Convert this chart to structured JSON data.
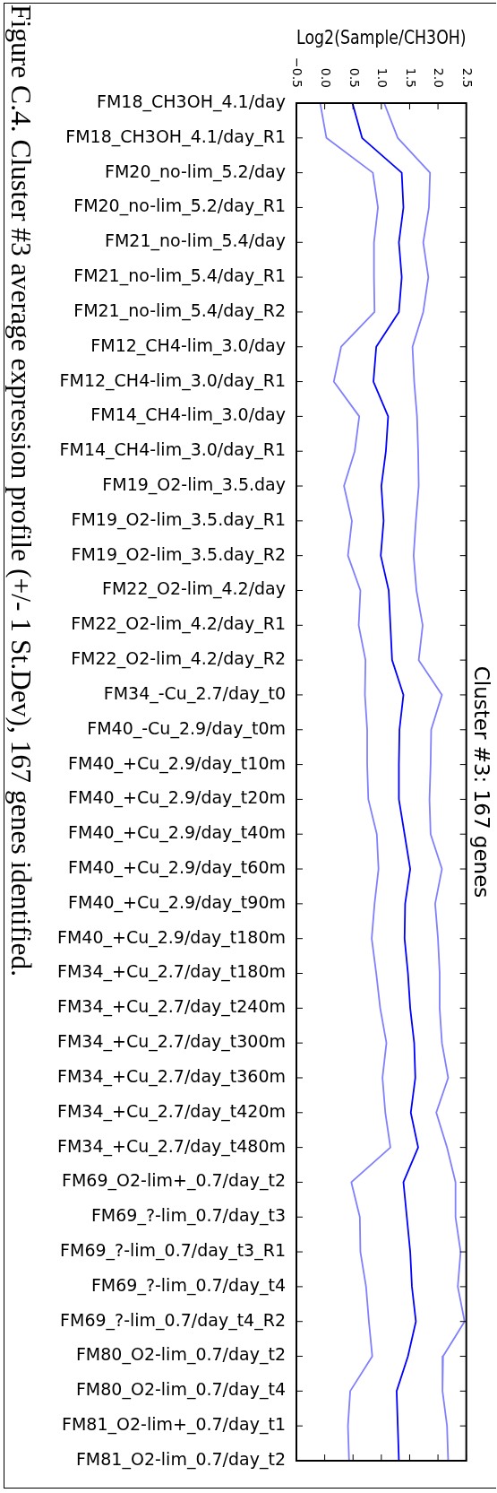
{
  "chart_data": {
    "type": "line",
    "orientation": "horizontal",
    "title": "Cluster #3: 167 genes",
    "xlabel": "Log2(Sample/CH3OH)",
    "annotations": [
      "Figure C.4. Cluster #3 average expression profile (+/- 1 St.Dev), 167 genes identified."
    ],
    "categories": [
      "FM18_CH3OH_4.1/day",
      "FM18_CH3OH_4.1/day_R1",
      "FM20_no-lim_5.2/day",
      "FM20_no-lim_5.2/day_R1",
      "FM21_no-lim_5.4/day",
      "FM21_no-lim_5.4/day_R1",
      "FM21_no-lim_5.4/day_R2",
      "FM12_CH4-lim_3.0/day",
      "FM12_CH4-lim_3.0/day_R1",
      "FM14_CH4-lim_3.0/day",
      "FM14_CH4-lim_3.0/day_R1",
      "FM19_O2-lim_3.5.day",
      "FM19_O2-lim_3.5.day_R1",
      "FM19_O2-lim_3.5.day_R2",
      "FM22_O2-lim_4.2/day",
      "FM22_O2-lim_4.2/day_R1",
      "FM22_O2-lim_4.2/day_R2",
      "FM34_-Cu_2.7/day_t0",
      "FM40_-Cu_2.9/day_t0m",
      "FM40_+Cu_2.9/day_t10m",
      "FM40_+Cu_2.9/day_t20m",
      "FM40_+Cu_2.9/day_t40m",
      "FM40_+Cu_2.9/day_t60m",
      "FM40_+Cu_2.9/day_t90m",
      "FM40_+Cu_2.9/day_t180m",
      "FM34_+Cu_2.7/day_t180m",
      "FM34_+Cu_2.7/day_t240m",
      "FM34_+Cu_2.7/day_t300m",
      "FM34_+Cu_2.7/day_t360m",
      "FM34_+Cu_2.7/day_t420m",
      "FM34_+Cu_2.7/day_t480m",
      "FM69_O2-lim+_0.7/day_t2",
      "FM69_?-lim_0.7/day_t3",
      "FM69_?-lim_0.7/day_t3_R1",
      "FM69_?-lim_0.7/day_t4",
      "FM69_?-lim_0.7/day_t4_R2",
      "FM80_O2-lim_0.7/day_t2",
      "FM80_O2-lim_0.7/day_t4",
      "FM81_O2-lim+_0.7/day_t1",
      "FM81_O2-lim_0.7/day_t2"
    ],
    "series": [
      {
        "color": "#8080ff",
        "values": [
          -0.08,
          0.03,
          0.85,
          0.94,
          0.87,
          0.87,
          0.88,
          0.29,
          0.16,
          0.61,
          0.53,
          0.34,
          0.48,
          0.41,
          0.63,
          0.6,
          0.72,
          0.71,
          0.75,
          0.75,
          0.77,
          0.92,
          0.95,
          0.88,
          0.83,
          0.91,
          0.98,
          1.09,
          1.02,
          1.07,
          1.16,
          0.47,
          0.62,
          0.63,
          0.73,
          0.78,
          0.84,
          0.45,
          0.41,
          0.43
        ]
      },
      {
        "color": "#0000ff",
        "values": [
          0.49,
          0.66,
          1.36,
          1.39,
          1.31,
          1.36,
          1.31,
          0.91,
          0.86,
          1.12,
          1.08,
          1.0,
          1.04,
          0.99,
          1.13,
          1.16,
          1.19,
          1.39,
          1.32,
          1.31,
          1.31,
          1.41,
          1.51,
          1.42,
          1.41,
          1.47,
          1.51,
          1.58,
          1.6,
          1.52,
          1.65,
          1.39,
          1.45,
          1.51,
          1.54,
          1.61,
          1.47,
          1.27,
          1.29,
          1.31
        ]
      },
      {
        "color": "#8080ff",
        "values": [
          1.05,
          1.29,
          1.86,
          1.84,
          1.74,
          1.83,
          1.74,
          1.55,
          1.58,
          1.63,
          1.65,
          1.66,
          1.61,
          1.57,
          1.62,
          1.73,
          1.66,
          2.07,
          1.88,
          1.87,
          1.85,
          1.87,
          2.07,
          1.95,
          2.0,
          2.03,
          2.03,
          2.07,
          2.18,
          1.97,
          2.16,
          2.31,
          2.31,
          2.4,
          2.35,
          2.47,
          2.09,
          2.08,
          2.16,
          2.18
        ]
      }
    ],
    "xlim": [
      -0.5,
      2.5
    ],
    "xticks": [
      {
        "value": -0.5,
        "label": "−0.5"
      },
      {
        "value": 0,
        "label": "0.0"
      },
      0.5,
      {
        "value": 1,
        "label": "1.0"
      },
      1.5,
      {
        "value": 2,
        "label": "2.0"
      },
      2.5
    ]
  }
}
